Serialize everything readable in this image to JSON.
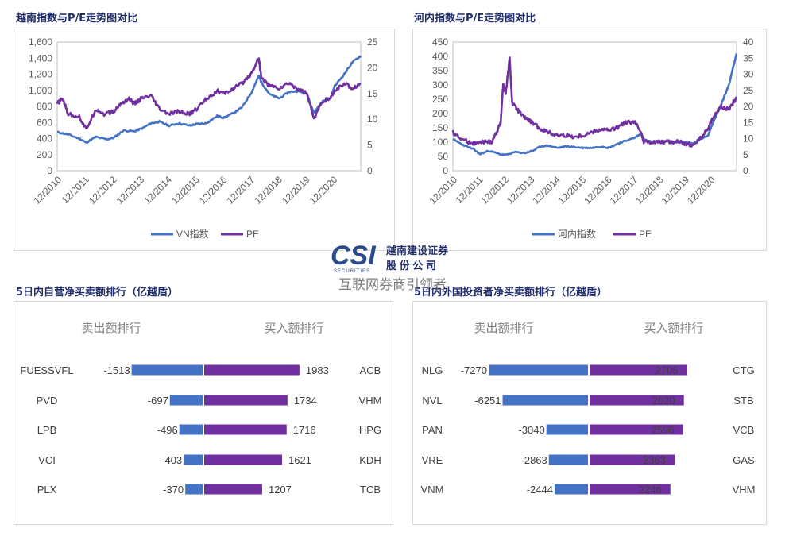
{
  "titles": {
    "vn_chart": "越南指数与P/E走势图对比",
    "hn_chart": "河内指数与P/E走势图对比",
    "self_trade": "5日内自营净买卖额排行（亿越盾）",
    "foreign_trade": "5日内外国投资者净买卖额排行（亿越盾）"
  },
  "watermark": {
    "logo": "CSI",
    "logo_sub": "SECURITIES",
    "company_line1": "越南建设证券",
    "company_line2": "股 份 公 司",
    "caption": "互联网券商引领者"
  },
  "colors": {
    "index_line": "#4472c4",
    "pe_line": "#7030a0",
    "sell_bar": "#4472c4",
    "buy_bar": "#7030a0"
  },
  "chart_data": [
    {
      "type": "line",
      "x": [
        "12/2010",
        "12/2011",
        "12/2012",
        "12/2013",
        "12/2014",
        "12/2015",
        "12/2016",
        "12/2017",
        "12/2018",
        "12/2019",
        "12/2020"
      ],
      "series": [
        {
          "name": "VN指数",
          "axis": "left",
          "points": [
            [
              2010.9,
              480
            ],
            [
              2011.3,
              450
            ],
            [
              2011.7,
              400
            ],
            [
              2011.95,
              350
            ],
            [
              2012.3,
              420
            ],
            [
              2012.7,
              390
            ],
            [
              2012.95,
              410
            ],
            [
              2013.3,
              500
            ],
            [
              2013.7,
              490
            ],
            [
              2014.0,
              530
            ],
            [
              2014.3,
              590
            ],
            [
              2014.6,
              610
            ],
            [
              2014.95,
              560
            ],
            [
              2015.3,
              590
            ],
            [
              2015.7,
              560
            ],
            [
              2015.95,
              580
            ],
            [
              2016.3,
              590
            ],
            [
              2016.7,
              680
            ],
            [
              2016.95,
              660
            ],
            [
              2017.3,
              720
            ],
            [
              2017.6,
              790
            ],
            [
              2017.95,
              980
            ],
            [
              2018.2,
              1180
            ],
            [
              2018.3,
              1100
            ],
            [
              2018.6,
              950
            ],
            [
              2018.95,
              900
            ],
            [
              2019.3,
              980
            ],
            [
              2019.6,
              990
            ],
            [
              2019.95,
              960
            ],
            [
              2020.2,
              720
            ],
            [
              2020.5,
              860
            ],
            [
              2020.8,
              900
            ],
            [
              2020.95,
              1050
            ],
            [
              2021.3,
              1200
            ],
            [
              2021.6,
              1350
            ],
            [
              2021.9,
              1430
            ]
          ]
        },
        {
          "name": "PE",
          "axis": "right",
          "points": [
            [
              2010.9,
              13
            ],
            [
              2011.1,
              14
            ],
            [
              2011.3,
              11
            ],
            [
              2011.7,
              10.5
            ],
            [
              2011.95,
              8
            ],
            [
              2012.3,
              12
            ],
            [
              2012.6,
              11
            ],
            [
              2012.95,
              11.5
            ],
            [
              2013.2,
              13
            ],
            [
              2013.5,
              14
            ],
            [
              2013.7,
              13
            ],
            [
              2013.95,
              14
            ],
            [
              2014.3,
              14.5
            ],
            [
              2014.6,
              12
            ],
            [
              2014.95,
              11
            ],
            [
              2015.3,
              11.5
            ],
            [
              2015.7,
              11
            ],
            [
              2015.95,
              12
            ],
            [
              2016.3,
              14
            ],
            [
              2016.7,
              15.5
            ],
            [
              2016.95,
              15
            ],
            [
              2017.3,
              16
            ],
            [
              2017.6,
              17
            ],
            [
              2017.95,
              19
            ],
            [
              2018.2,
              22
            ],
            [
              2018.3,
              18
            ],
            [
              2018.6,
              16.5
            ],
            [
              2018.95,
              16
            ],
            [
              2019.3,
              17
            ],
            [
              2019.6,
              16
            ],
            [
              2019.95,
              15
            ],
            [
              2020.2,
              10
            ],
            [
              2020.5,
              13.5
            ],
            [
              2020.8,
              14
            ],
            [
              2020.95,
              15.5
            ],
            [
              2021.3,
              17
            ],
            [
              2021.6,
              16
            ],
            [
              2021.9,
              17
            ]
          ]
        }
      ],
      "yleft": [
        0,
        1600
      ],
      "yleft_ticks": [
        "0",
        "200",
        "400",
        "600",
        "800",
        "1,000",
        "1,200",
        "1,400",
        "1,600"
      ],
      "yright": [
        0,
        25
      ],
      "yright_ticks": [
        "0",
        "5",
        "10",
        "15",
        "20",
        "25"
      ],
      "legend": [
        {
          "label": "VN指数"
        },
        {
          "label": "PE"
        }
      ]
    },
    {
      "type": "line",
      "x": [
        "12/2010",
        "12/2011",
        "12/2012",
        "12/2013",
        "12/2014",
        "12/2015",
        "12/2016",
        "12/2017",
        "12/2018",
        "12/2019",
        "12/2020"
      ],
      "series": [
        {
          "name": "河内指数",
          "axis": "left",
          "points": [
            [
              2010.9,
              110
            ],
            [
              2011.3,
              90
            ],
            [
              2011.7,
              75
            ],
            [
              2011.95,
              58
            ],
            [
              2012.3,
              70
            ],
            [
              2012.7,
              58
            ],
            [
              2012.95,
              55
            ],
            [
              2013.3,
              65
            ],
            [
              2013.7,
              62
            ],
            [
              2014.0,
              70
            ],
            [
              2014.3,
              85
            ],
            [
              2014.6,
              88
            ],
            [
              2014.95,
              80
            ],
            [
              2015.3,
              85
            ],
            [
              2015.7,
              82
            ],
            [
              2015.95,
              80
            ],
            [
              2016.3,
              80
            ],
            [
              2016.7,
              85
            ],
            [
              2016.95,
              80
            ],
            [
              2017.3,
              95
            ],
            [
              2017.6,
              105
            ],
            [
              2017.95,
              115
            ],
            [
              2018.2,
              130
            ],
            [
              2018.3,
              110
            ],
            [
              2018.6,
              100
            ],
            [
              2018.95,
              104
            ],
            [
              2019.3,
              103
            ],
            [
              2019.6,
              100
            ],
            [
              2019.95,
              100
            ],
            [
              2020.2,
              95
            ],
            [
              2020.5,
              110
            ],
            [
              2020.8,
              125
            ],
            [
              2020.95,
              160
            ],
            [
              2021.3,
              230
            ],
            [
              2021.6,
              300
            ],
            [
              2021.9,
              410
            ]
          ]
        },
        {
          "name": "PE",
          "axis": "right",
          "points": [
            [
              2010.9,
              12
            ],
            [
              2011.2,
              10
            ],
            [
              2011.5,
              9
            ],
            [
              2011.8,
              8.5
            ],
            [
              2012.1,
              9
            ],
            [
              2012.4,
              9
            ],
            [
              2012.6,
              12
            ],
            [
              2012.75,
              15
            ],
            [
              2012.85,
              27
            ],
            [
              2012.95,
              24
            ],
            [
              2013.1,
              35
            ],
            [
              2013.2,
              21
            ],
            [
              2013.4,
              19
            ],
            [
              2013.6,
              17
            ],
            [
              2013.8,
              16
            ],
            [
              2013.95,
              15
            ],
            [
              2014.3,
              13
            ],
            [
              2014.6,
              12
            ],
            [
              2014.9,
              11
            ],
            [
              2015.3,
              11
            ],
            [
              2015.6,
              10.5
            ],
            [
              2015.95,
              11
            ],
            [
              2016.3,
              12
            ],
            [
              2016.7,
              13
            ],
            [
              2016.95,
              12.5
            ],
            [
              2017.3,
              13.5
            ],
            [
              2017.6,
              15
            ],
            [
              2017.95,
              15
            ],
            [
              2018.2,
              12
            ],
            [
              2018.3,
              9
            ],
            [
              2018.6,
              9
            ],
            [
              2018.95,
              9
            ],
            [
              2019.3,
              9
            ],
            [
              2019.6,
              9
            ],
            [
              2019.95,
              8.5
            ],
            [
              2020.2,
              8
            ],
            [
              2020.5,
              10
            ],
            [
              2020.8,
              13
            ],
            [
              2020.95,
              16
            ],
            [
              2021.3,
              20
            ],
            [
              2021.6,
              19
            ],
            [
              2021.9,
              23
            ]
          ]
        }
      ],
      "yleft": [
        0,
        450
      ],
      "yleft_ticks": [
        "0",
        "50",
        "100",
        "150",
        "200",
        "250",
        "300",
        "350",
        "400",
        "450"
      ],
      "yright": [
        0,
        40
      ],
      "yright_ticks": [
        "0",
        "5",
        "10",
        "15",
        "20",
        "25",
        "30",
        "35",
        "40"
      ],
      "legend": [
        {
          "label": "河内指数"
        },
        {
          "label": "PE"
        }
      ]
    },
    {
      "type": "bar",
      "sell_header": "卖出额排行",
      "buy_header": "买入额排行",
      "sell": [
        {
          "ticker": "FUESSVFL",
          "value": -1513
        },
        {
          "ticker": "PVD",
          "value": -697
        },
        {
          "ticker": "LPB",
          "value": -496
        },
        {
          "ticker": "VCI",
          "value": -403
        },
        {
          "ticker": "PLX",
          "value": -370
        }
      ],
      "buy": [
        {
          "ticker": "ACB",
          "value": 1983
        },
        {
          "ticker": "VHM",
          "value": 1734
        },
        {
          "ticker": "HPG",
          "value": 1716
        },
        {
          "ticker": "KDH",
          "value": 1621
        },
        {
          "ticker": "TCB",
          "value": 1207
        }
      ],
      "scale_max": 2200
    },
    {
      "type": "bar",
      "sell_header": "卖出额排行",
      "buy_header": "买入额排行",
      "sell": [
        {
          "ticker": "NLG",
          "value": -7270
        },
        {
          "ticker": "NVL",
          "value": -6251
        },
        {
          "ticker": "PAN",
          "value": -3040
        },
        {
          "ticker": "VRE",
          "value": -2863
        },
        {
          "ticker": "VNM",
          "value": -2444
        }
      ],
      "buy": [
        {
          "ticker": "CTG",
          "value": 2706
        },
        {
          "ticker": "STB",
          "value": 2620
        },
        {
          "ticker": "VCB",
          "value": 2596
        },
        {
          "ticker": "GAS",
          "value": 2363
        },
        {
          "ticker": "VHM",
          "value": 2246
        }
      ],
      "scale_max": 7270,
      "buy_scale_max": 3200
    }
  ]
}
